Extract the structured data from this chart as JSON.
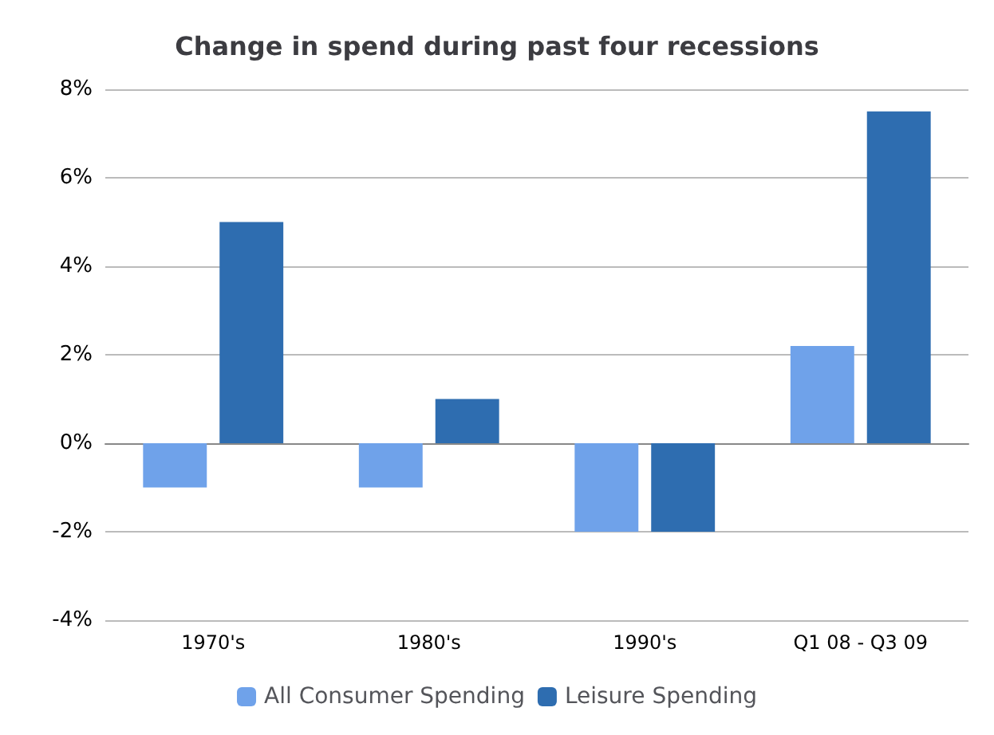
{
  "chart_data": {
    "type": "bar",
    "title": "Change in spend during past four recessions",
    "categories": [
      "1970's",
      "1980's",
      "1990's",
      "Q1 08 - Q3 09"
    ],
    "series": [
      {
        "name": "All Consumer Spending",
        "color": "#6fa2ea",
        "values": [
          -1,
          -1,
          -2,
          2.2
        ]
      },
      {
        "name": "Leisure Spending",
        "color": "#2e6db0",
        "values": [
          5,
          1,
          -2,
          7.5
        ]
      }
    ],
    "ylim": [
      -4,
      8
    ],
    "yticks": [
      {
        "value": -4,
        "label": "-4%"
      },
      {
        "value": -2,
        "label": "-2%"
      },
      {
        "value": 0,
        "label": "0%"
      },
      {
        "value": 2,
        "label": "2%"
      },
      {
        "value": 4,
        "label": "4%"
      },
      {
        "value": 6,
        "label": "6%"
      },
      {
        "value": 8,
        "label": "8%"
      }
    ],
    "grid": "y",
    "legend": "bottom"
  }
}
